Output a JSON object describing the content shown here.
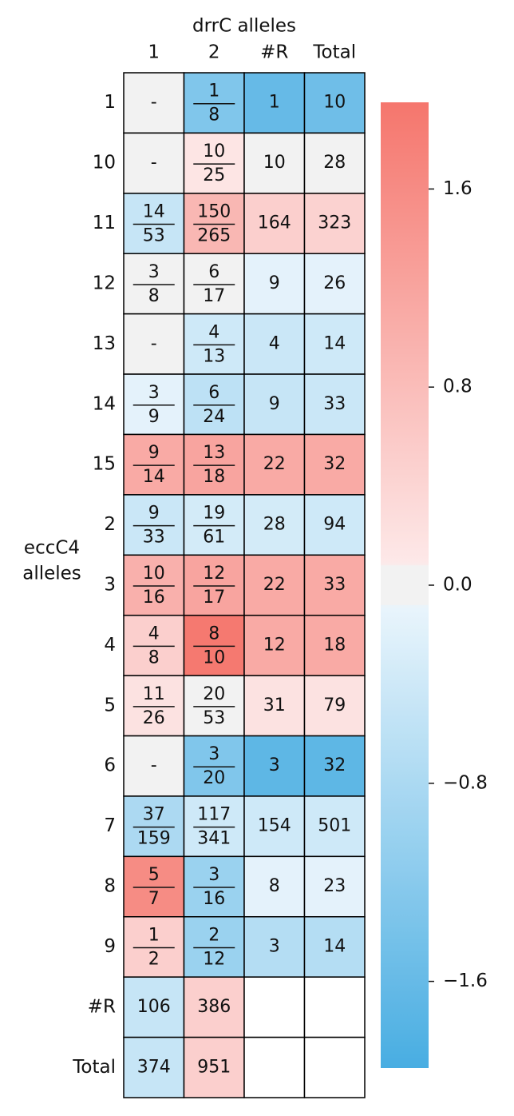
{
  "chart_data": {
    "type": "heatmap",
    "title": "drrC alleles",
    "ylabel": [
      "eccC4",
      "alleles"
    ],
    "columns": [
      "1",
      "2",
      "#R",
      "Total"
    ],
    "rows": [
      "1",
      "10",
      "11",
      "12",
      "13",
      "14",
      "15",
      "2",
      "3",
      "4",
      "5",
      "6",
      "7",
      "8",
      "9",
      "#R",
      "Total"
    ],
    "labels": [
      [
        "-",
        [
          "1",
          "8"
        ],
        "1",
        "10"
      ],
      [
        "-",
        [
          "10",
          "25"
        ],
        "10",
        "28"
      ],
      [
        [
          "14",
          "53"
        ],
        [
          "150",
          "265"
        ],
        "164",
        "323"
      ],
      [
        [
          "3",
          "8"
        ],
        [
          "6",
          "17"
        ],
        "9",
        "26"
      ],
      [
        "-",
        [
          "4",
          "13"
        ],
        "4",
        "14"
      ],
      [
        [
          "3",
          "9"
        ],
        [
          "6",
          "24"
        ],
        "9",
        "33"
      ],
      [
        [
          "9",
          "14"
        ],
        [
          "13",
          "18"
        ],
        "22",
        "32"
      ],
      [
        [
          "9",
          "33"
        ],
        [
          "19",
          "61"
        ],
        "28",
        "94"
      ],
      [
        [
          "10",
          "16"
        ],
        [
          "12",
          "17"
        ],
        "22",
        "33"
      ],
      [
        [
          "4",
          "8"
        ],
        [
          "8",
          "10"
        ],
        "12",
        "18"
      ],
      [
        [
          "11",
          "26"
        ],
        [
          "20",
          "53"
        ],
        "31",
        "79"
      ],
      [
        "-",
        [
          "3",
          "20"
        ],
        "3",
        "32"
      ],
      [
        [
          "37",
          "159"
        ],
        [
          "117",
          "341"
        ],
        "154",
        "501"
      ],
      [
        [
          "5",
          "7"
        ],
        [
          "3",
          "16"
        ],
        "8",
        "23"
      ],
      [
        [
          "1",
          "2"
        ],
        [
          "2",
          "12"
        ],
        "3",
        "14"
      ],
      [
        "106",
        "386",
        null,
        null
      ],
      [
        "374",
        "951",
        null,
        null
      ]
    ],
    "values": [
      [
        0,
        -1.3,
        -1.6,
        -1.5
      ],
      [
        0,
        0.15,
        0,
        0
      ],
      [
        -0.5,
        0.9,
        0.5,
        0.45
      ],
      [
        0,
        0,
        -0.15,
        -0.15
      ],
      [
        0,
        -0.4,
        -0.45,
        -0.4
      ],
      [
        -0.15,
        -0.6,
        -0.5,
        -0.45
      ],
      [
        1.1,
        1.2,
        1.1,
        1.1
      ],
      [
        -0.45,
        -0.35,
        -0.35,
        -0.4
      ],
      [
        1.0,
        1.2,
        1.1,
        1.1
      ],
      [
        0.5,
        1.9,
        1.1,
        1.1
      ],
      [
        0.2,
        0,
        0.2,
        0.2
      ],
      [
        0,
        -1.3,
        -1.7,
        -1.7
      ],
      [
        -0.8,
        -0.4,
        -0.4,
        -0.4
      ],
      [
        1.6,
        -1.0,
        -0.15,
        -0.15
      ],
      [
        0.5,
        -1.0,
        -0.7,
        -0.7
      ],
      [
        -0.5,
        0.5,
        null,
        null
      ],
      [
        -0.5,
        0.5,
        null,
        null
      ]
    ],
    "clim": [
      -1.95,
      1.95
    ],
    "cticks": [
      1.6,
      0.8,
      {
        "value": 0,
        "label": "0.0"
      },
      {
        "value": -0.8,
        "label": "−0.8"
      },
      {
        "value": -1.6,
        "label": "−1.6"
      }
    ],
    "neutral_band": [
      -0.08,
      0.08
    ],
    "neutral_color": "#f2f2f2",
    "negative_colors": [
      "#eaf5fc",
      "#48ade2"
    ],
    "positive_colors": [
      "#fde9e9",
      "#f5766d"
    ],
    "empty_color": "#ffffff"
  }
}
